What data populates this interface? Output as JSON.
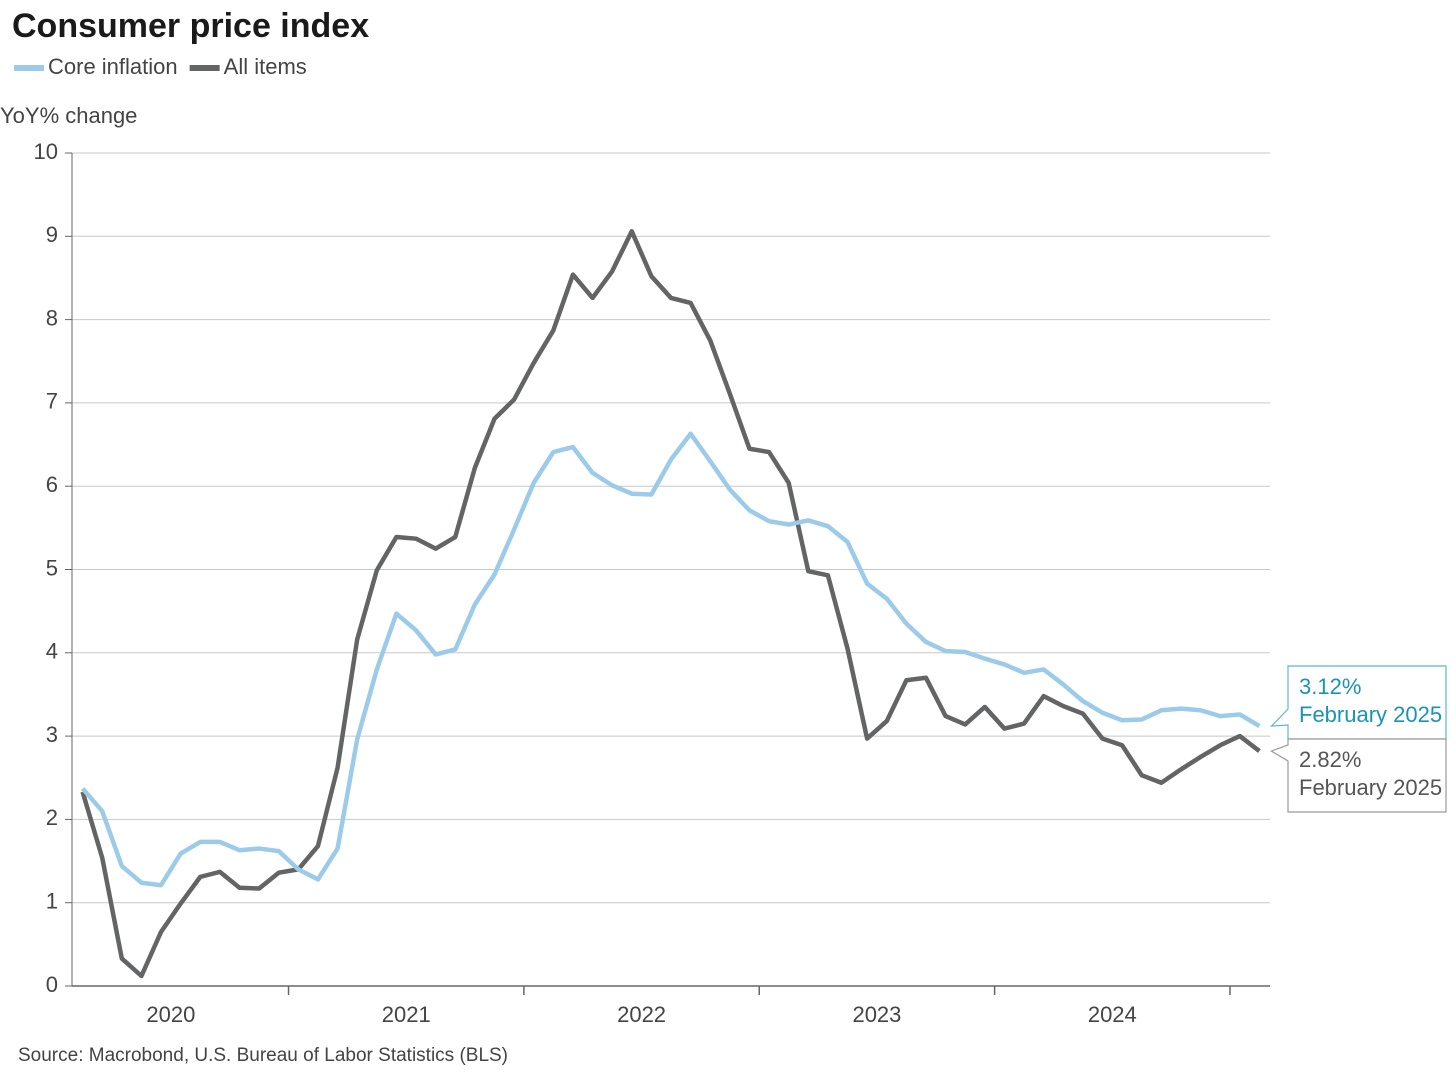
{
  "chart_data": {
    "type": "line",
    "title": "Consumer price index",
    "ylabel": "YoY% change",
    "source": "Source: Macrobond, U.S. Bureau of Labor Statistics (BLS)",
    "x": [
      "2020-02",
      "2020-03",
      "2020-04",
      "2020-05",
      "2020-06",
      "2020-07",
      "2020-08",
      "2020-09",
      "2020-10",
      "2020-11",
      "2020-12",
      "2021-01",
      "2021-02",
      "2021-03",
      "2021-04",
      "2021-05",
      "2021-06",
      "2021-07",
      "2021-08",
      "2021-09",
      "2021-10",
      "2021-11",
      "2021-12",
      "2022-01",
      "2022-02",
      "2022-03",
      "2022-04",
      "2022-05",
      "2022-06",
      "2022-07",
      "2022-08",
      "2022-09",
      "2022-10",
      "2022-11",
      "2022-12",
      "2023-01",
      "2023-02",
      "2023-03",
      "2023-04",
      "2023-05",
      "2023-06",
      "2023-07",
      "2023-08",
      "2023-09",
      "2023-10",
      "2023-11",
      "2023-12",
      "2024-01",
      "2024-02",
      "2024-03",
      "2024-04",
      "2024-05",
      "2024-06",
      "2024-07",
      "2024-08",
      "2024-09",
      "2024-10",
      "2024-11",
      "2024-12",
      "2025-01",
      "2025-02"
    ],
    "xlim": [
      2020.08,
      2025.17
    ],
    "xticks": [
      2021,
      2022,
      2023,
      2024,
      2025
    ],
    "xlabels": [
      "2020",
      "2021",
      "2022",
      "2023",
      "2024"
    ],
    "ylim": [
      0,
      10
    ],
    "yticks": [
      0,
      1,
      2,
      3,
      4,
      5,
      6,
      7,
      8,
      9,
      10
    ],
    "grid": true,
    "legend": "top-left",
    "series": [
      {
        "name": "Core inflation",
        "color": "#9ccbe9",
        "label_color": "#1a93b8",
        "box_color": "#5bb8cc",
        "values": [
          2.37,
          2.1,
          1.44,
          1.24,
          1.21,
          1.59,
          1.73,
          1.73,
          1.63,
          1.65,
          1.62,
          1.4,
          1.28,
          1.65,
          2.96,
          3.8,
          4.47,
          4.27,
          3.98,
          4.04,
          4.58,
          4.94,
          5.48,
          6.04,
          6.41,
          6.47,
          6.16,
          6.01,
          5.91,
          5.9,
          6.32,
          6.63,
          6.3,
          5.96,
          5.71,
          5.58,
          5.54,
          5.59,
          5.52,
          5.33,
          4.83,
          4.65,
          4.35,
          4.13,
          4.02,
          4.01,
          3.93,
          3.86,
          3.76,
          3.8,
          3.62,
          3.42,
          3.28,
          3.19,
          3.2,
          3.31,
          3.33,
          3.31,
          3.24,
          3.26,
          3.12
        ],
        "value_labels": [
          null,
          null,
          null,
          null,
          null,
          null,
          null,
          null,
          null,
          null,
          null,
          null,
          null,
          null,
          null,
          null,
          null,
          null,
          null,
          null,
          null,
          null,
          null,
          null,
          null,
          null,
          null,
          null,
          null,
          null,
          null,
          null,
          null,
          null,
          null,
          null,
          null,
          null,
          null,
          null,
          null,
          null,
          null,
          null,
          null,
          null,
          null,
          null,
          null,
          null,
          null,
          null,
          null,
          null,
          null,
          null,
          null,
          null,
          null,
          null,
          "3.12%"
        ],
        "annotation": "February 2025"
      },
      {
        "name": "All items",
        "color": "#636466",
        "label_color": "#555555",
        "box_color": "#999999",
        "values": [
          2.33,
          1.54,
          0.33,
          0.12,
          0.65,
          0.99,
          1.31,
          1.37,
          1.18,
          1.17,
          1.36,
          1.4,
          1.68,
          2.62,
          4.16,
          4.99,
          5.39,
          5.37,
          5.25,
          5.39,
          6.22,
          6.81,
          7.04,
          7.48,
          7.87,
          8.54,
          8.26,
          8.58,
          9.06,
          8.52,
          8.26,
          8.2,
          7.75,
          7.11,
          6.45,
          6.41,
          6.04,
          4.98,
          4.93,
          4.05,
          2.97,
          3.18,
          3.67,
          3.7,
          3.24,
          3.14,
          3.35,
          3.09,
          3.15,
          3.48,
          3.36,
          3.27,
          2.97,
          2.89,
          2.53,
          2.44,
          2.6,
          2.75,
          2.89,
          3.0,
          2.82
        ],
        "value_labels": [
          null,
          null,
          null,
          null,
          null,
          null,
          null,
          null,
          null,
          null,
          null,
          null,
          null,
          null,
          null,
          null,
          null,
          null,
          null,
          null,
          null,
          null,
          null,
          null,
          null,
          null,
          null,
          null,
          null,
          null,
          null,
          null,
          null,
          null,
          null,
          null,
          null,
          null,
          null,
          null,
          null,
          null,
          null,
          null,
          null,
          null,
          null,
          null,
          null,
          null,
          null,
          null,
          null,
          null,
          null,
          null,
          null,
          null,
          null,
          null,
          "2.82%"
        ],
        "annotation": "February 2025"
      }
    ]
  }
}
